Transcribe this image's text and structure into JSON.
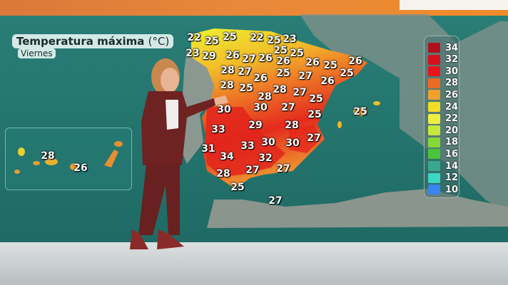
{
  "title": "Temperatura máxima",
  "unit": "(°C)",
  "day": "Viernes",
  "peninsula_temps": [
    "22",
    "25",
    "25",
    "22",
    "25",
    "23",
    "25",
    "25",
    "23",
    "29",
    "26",
    "27",
    "26",
    "26",
    "26",
    "25",
    "26",
    "25",
    "28",
    "27",
    "26",
    "25",
    "27",
    "26",
    "28",
    "25",
    "28",
    "28",
    "27",
    "25",
    "25",
    "30",
    "30",
    "27",
    "25",
    "33",
    "29",
    "28",
    "27",
    "31",
    "33",
    "30",
    "30",
    "34",
    "32",
    "28",
    "27",
    "27",
    "25",
    "27"
  ],
  "canary_temps": [
    "28",
    "26"
  ],
  "legend": [
    {
      "value": "34",
      "color": "#b0101e"
    },
    {
      "value": "32",
      "color": "#d4121e"
    },
    {
      "value": "30",
      "color": "#e8141e"
    },
    {
      "value": "28",
      "color": "#ec6a24"
    },
    {
      "value": "26",
      "color": "#f0a02c"
    },
    {
      "value": "24",
      "color": "#f2dc26"
    },
    {
      "value": "22",
      "color": "#eeee40"
    },
    {
      "value": "20",
      "color": "#c6e83a"
    },
    {
      "value": "18",
      "color": "#86d838"
    },
    {
      "value": "16",
      "color": "#4cc43a"
    },
    {
      "value": "14",
      "color": "#3aa890"
    },
    {
      "value": "12",
      "color": "#3ad8c4"
    },
    {
      "value": "10",
      "color": "#3a86ee"
    }
  ]
}
